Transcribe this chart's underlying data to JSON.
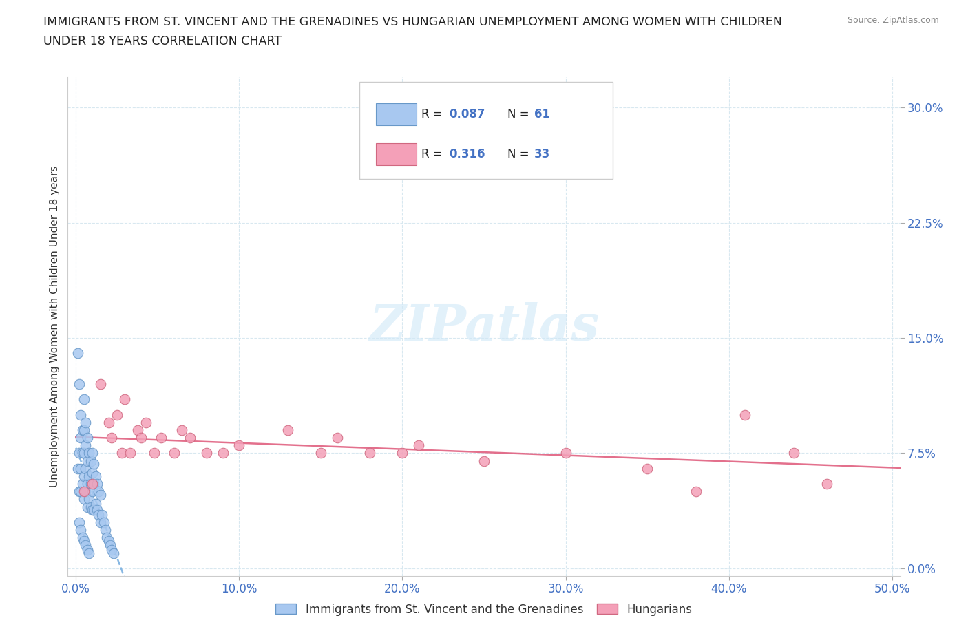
{
  "title_line1": "IMMIGRANTS FROM ST. VINCENT AND THE GRENADINES VS HUNGARIAN UNEMPLOYMENT AMONG WOMEN WITH CHILDREN",
  "title_line2": "UNDER 18 YEARS CORRELATION CHART",
  "source": "Source: ZipAtlas.com",
  "ylabel": "Unemployment Among Women with Children Under 18 years",
  "xlabel_ticks": [
    "0.0%",
    "10.0%",
    "20.0%",
    "30.0%",
    "40.0%",
    "50.0%"
  ],
  "xlabel_vals": [
    0.0,
    0.1,
    0.2,
    0.3,
    0.4,
    0.5
  ],
  "ylabel_ticks": [
    "0.0%",
    "7.5%",
    "15.0%",
    "22.5%",
    "30.0%"
  ],
  "ylabel_vals": [
    0.0,
    0.075,
    0.15,
    0.225,
    0.3
  ],
  "xlim": [
    -0.005,
    0.505
  ],
  "ylim": [
    -0.005,
    0.32
  ],
  "r_blue": 0.087,
  "n_blue": 61,
  "r_pink": 0.316,
  "n_pink": 33,
  "blue_color": "#a8c8f0",
  "blue_edge_color": "#6898c8",
  "pink_color": "#f4a0b8",
  "pink_edge_color": "#d06880",
  "trendline_blue_color": "#7ab0e0",
  "trendline_pink_color": "#e06080",
  "watermark_text": "ZIPatlas",
  "watermark_color": "#d0e8f8",
  "blue_x": [
    0.001,
    0.001,
    0.002,
    0.002,
    0.002,
    0.003,
    0.003,
    0.003,
    0.003,
    0.004,
    0.004,
    0.004,
    0.005,
    0.005,
    0.005,
    0.005,
    0.005,
    0.006,
    0.006,
    0.006,
    0.006,
    0.007,
    0.007,
    0.007,
    0.007,
    0.008,
    0.008,
    0.008,
    0.009,
    0.009,
    0.009,
    0.01,
    0.01,
    0.01,
    0.01,
    0.011,
    0.011,
    0.011,
    0.012,
    0.012,
    0.013,
    0.013,
    0.014,
    0.014,
    0.015,
    0.015,
    0.016,
    0.017,
    0.018,
    0.019,
    0.02,
    0.021,
    0.022,
    0.023,
    0.002,
    0.003,
    0.004,
    0.005,
    0.006,
    0.007,
    0.008
  ],
  "blue_y": [
    0.14,
    0.065,
    0.12,
    0.075,
    0.05,
    0.1,
    0.085,
    0.065,
    0.05,
    0.09,
    0.075,
    0.055,
    0.11,
    0.09,
    0.075,
    0.06,
    0.045,
    0.095,
    0.08,
    0.065,
    0.05,
    0.085,
    0.07,
    0.055,
    0.04,
    0.075,
    0.06,
    0.045,
    0.07,
    0.055,
    0.04,
    0.075,
    0.062,
    0.05,
    0.038,
    0.068,
    0.055,
    0.038,
    0.06,
    0.042,
    0.055,
    0.038,
    0.05,
    0.035,
    0.048,
    0.03,
    0.035,
    0.03,
    0.025,
    0.02,
    0.018,
    0.015,
    0.012,
    0.01,
    0.03,
    0.025,
    0.02,
    0.018,
    0.015,
    0.012,
    0.01
  ],
  "pink_x": [
    0.005,
    0.01,
    0.015,
    0.02,
    0.022,
    0.025,
    0.028,
    0.03,
    0.033,
    0.038,
    0.04,
    0.043,
    0.048,
    0.052,
    0.06,
    0.065,
    0.07,
    0.08,
    0.09,
    0.1,
    0.13,
    0.15,
    0.16,
    0.18,
    0.2,
    0.21,
    0.25,
    0.3,
    0.35,
    0.38,
    0.41,
    0.44,
    0.46
  ],
  "pink_y": [
    0.05,
    0.055,
    0.12,
    0.095,
    0.085,
    0.1,
    0.075,
    0.11,
    0.075,
    0.09,
    0.085,
    0.095,
    0.075,
    0.085,
    0.075,
    0.09,
    0.085,
    0.075,
    0.075,
    0.08,
    0.09,
    0.075,
    0.085,
    0.075,
    0.075,
    0.08,
    0.07,
    0.075,
    0.065,
    0.05,
    0.1,
    0.075,
    0.055
  ]
}
